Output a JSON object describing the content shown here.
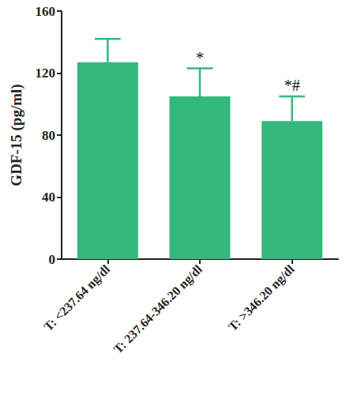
{
  "chart_data": {
    "type": "bar",
    "y_label": "GDF-15 (pg/ml)",
    "categories": [
      "T: <237.64 ng/dl",
      "T: 237.64-346.20 ng/dl",
      "T: >346.20 ng/dl"
    ],
    "values": [
      127,
      105,
      89
    ],
    "errors": [
      15,
      18,
      16
    ],
    "color": "#33b97d",
    "ylim": [
      0,
      160
    ],
    "yticks": [
      0,
      40,
      80,
      120,
      160
    ],
    "grid": false,
    "annotations": [
      {
        "category": "T: 237.64-346.20 ng/dl",
        "text": "*"
      },
      {
        "category": "T: >346.20 ng/dl",
        "text": "*#"
      }
    ]
  }
}
